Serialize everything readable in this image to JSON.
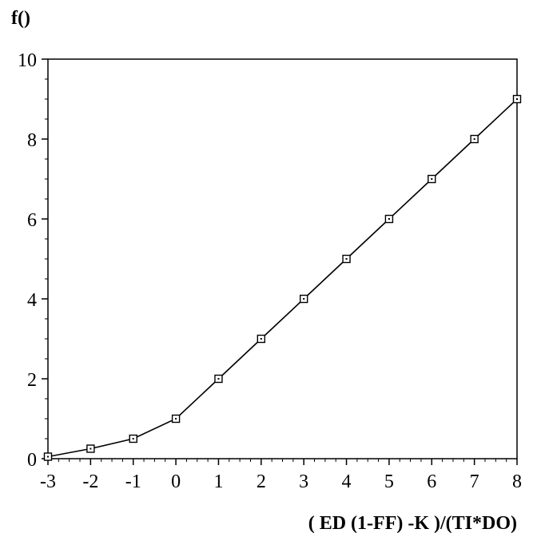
{
  "chart_data": {
    "type": "line",
    "title": "",
    "ylabel": "f()",
    "xlabel": "( ED (1-FF) -K )/(TI*DO)",
    "xlim": [
      -3,
      8
    ],
    "ylim": [
      0,
      10
    ],
    "x_ticks": [
      "-3",
      "-2",
      "-1",
      "0",
      "1",
      "2",
      "3",
      "4",
      "5",
      "6",
      "7",
      "8"
    ],
    "y_ticks": [
      "0",
      "2",
      "4",
      "6",
      "8",
      "10"
    ],
    "grid": false,
    "marker": "square",
    "series": [
      {
        "x": [
          -3,
          -2,
          -1,
          0,
          1,
          2,
          3,
          4,
          5,
          6,
          7,
          8
        ],
        "y": [
          0.05,
          0.25,
          0.5,
          1,
          2,
          3,
          4,
          5,
          6,
          7,
          8,
          9
        ]
      }
    ],
    "colors": {
      "line": "#000000",
      "axis": "#000000"
    }
  }
}
